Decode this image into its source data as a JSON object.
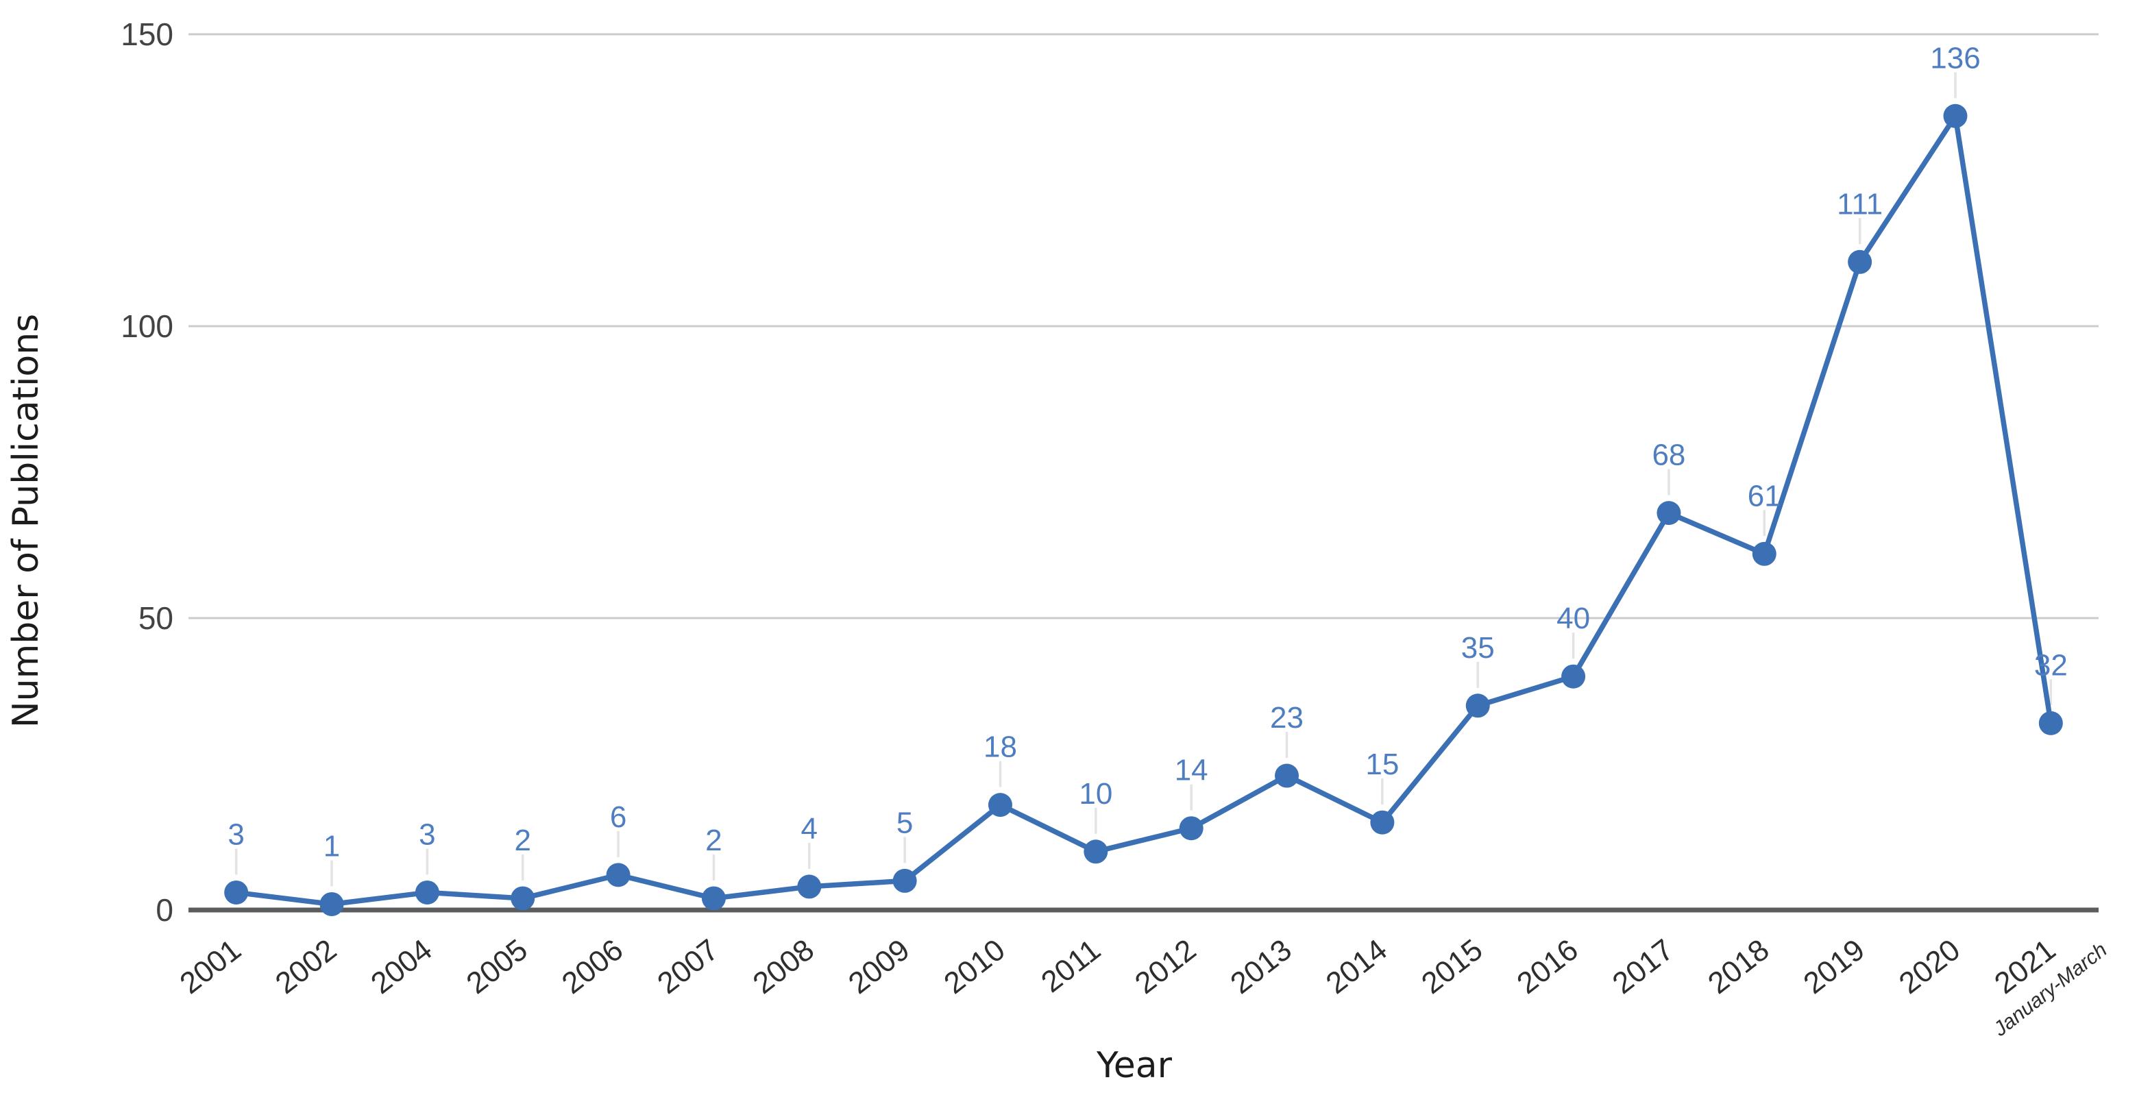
{
  "page": {
    "background": "#ffffff"
  },
  "chart_data": {
    "type": "line",
    "title": "",
    "xlabel": "Year",
    "ylabel": "Number of Publications",
    "categories": [
      "2001",
      "2002",
      "2004",
      "2005",
      "2006",
      "2007",
      "2008",
      "2009",
      "2010",
      "2011",
      "2012",
      "2013",
      "2014",
      "2015",
      "2016",
      "2017",
      "2018",
      "2019",
      "2020",
      "2021"
    ],
    "values": [
      3,
      1,
      3,
      2,
      6,
      2,
      4,
      5,
      18,
      10,
      14,
      23,
      15,
      35,
      40,
      68,
      61,
      111,
      136,
      32
    ],
    "last_category_sublabel": "January-March",
    "data_labels": true,
    "ylim": [
      0,
      150
    ],
    "yticks": [
      0,
      50,
      100,
      150
    ],
    "grid": true,
    "legend_position": "none",
    "marker": "circle",
    "colors": {
      "series": "#3b70b5",
      "data_label": "#4e7ec1",
      "leader_line": "#e3e3e3",
      "gridline": "#cccccc",
      "axis_line": "#5b5c5e",
      "y_tick_label": "#434343",
      "x_tick_label": "#2e2e2e",
      "axis_title": "#1c1c1c",
      "background": "#ffffff"
    }
  }
}
